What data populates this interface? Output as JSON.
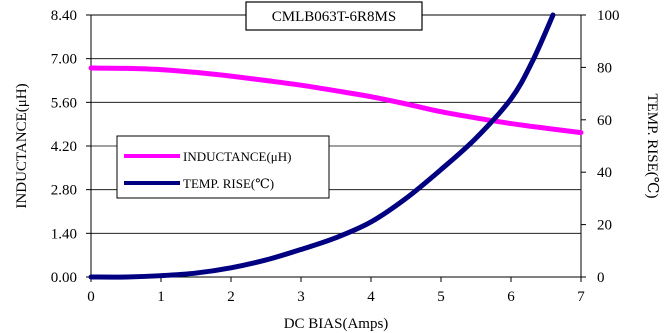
{
  "chart_data": {
    "type": "line",
    "title": "CMLB063T-6R8MS",
    "xlabel": "DC BIAS(Amps)",
    "ylabel": "INDUCTANCE(μH)",
    "y2label": "TEMP. RISE(℃)",
    "xlim": [
      0,
      7
    ],
    "ylim": [
      0,
      8.4
    ],
    "y2lim": [
      0,
      100
    ],
    "x_ticks": [
      "0",
      "1",
      "2",
      "3",
      "4",
      "5",
      "6",
      "7"
    ],
    "y_ticks": [
      "0.00",
      "1.40",
      "2.80",
      "4.20",
      "5.60",
      "7.00",
      "8.40"
    ],
    "y2_ticks": [
      "0",
      "20",
      "40",
      "60",
      "80",
      "100"
    ],
    "grid": "horizontal",
    "legend_position": "middle-left",
    "series": [
      {
        "name": "INDUCTANCE(μH)",
        "axis": "left",
        "color": "#ff00ff",
        "x": [
          0,
          0.5,
          1,
          1.5,
          2,
          2.5,
          3,
          3.5,
          4,
          4.5,
          5,
          5.5,
          6,
          6.5,
          7
        ],
        "y": [
          6.7,
          6.69,
          6.65,
          6.56,
          6.44,
          6.3,
          6.15,
          5.97,
          5.78,
          5.55,
          5.3,
          5.1,
          4.92,
          4.77,
          4.63
        ]
      },
      {
        "name": "TEMP. RISE(℃)",
        "axis": "right",
        "color": "#000080",
        "x": [
          0,
          0.5,
          1,
          1.5,
          2,
          2.5,
          3,
          3.5,
          4,
          4.5,
          5,
          5.5,
          6,
          6.3,
          6.6
        ],
        "y": [
          0,
          0,
          0.5,
          1.5,
          3.5,
          6.5,
          10.5,
          15,
          21,
          30,
          41,
          53,
          68,
          82,
          100
        ]
      }
    ]
  }
}
